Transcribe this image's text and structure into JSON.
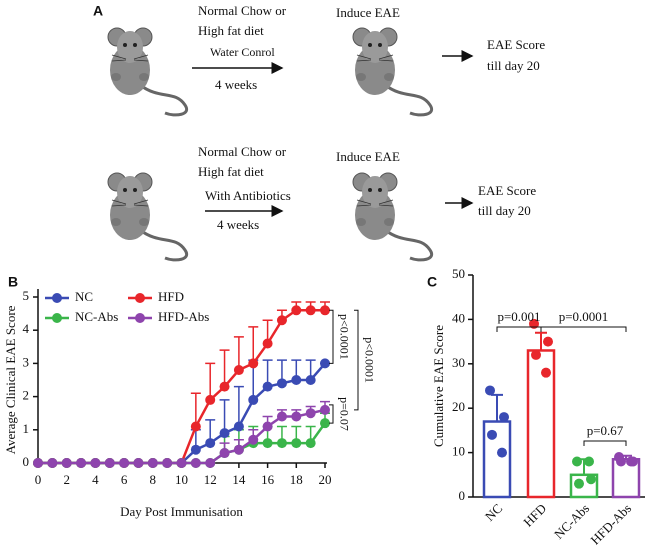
{
  "diagram": {
    "panel": "A",
    "rows": [
      {
        "diet": [
          "Normal Chow or",
          "High fat diet"
        ],
        "treatment": "Water Conrol",
        "duration": "4 weeks",
        "induce": "Induce EAE",
        "outcome": [
          "EAE Score",
          "till day 20"
        ]
      },
      {
        "diet": [
          "Normal Chow or",
          "High fat diet"
        ],
        "treatment": "With Antibiotics",
        "duration": "4 weeks",
        "induce": "Induce EAE",
        "outcome": [
          "EAE Score",
          "till day 20"
        ]
      }
    ]
  },
  "chart_data": [
    {
      "type": "line",
      "panel": "B",
      "xlabel": "Day Post Immunisation",
      "ylabel": "Average Clinical EAE Score",
      "x": [
        0,
        1,
        2,
        3,
        4,
        5,
        6,
        7,
        8,
        9,
        10,
        11,
        12,
        13,
        14,
        15,
        16,
        17,
        18,
        19,
        20
      ],
      "xlim": [
        0,
        20
      ],
      "xticks": [
        0,
        2,
        4,
        6,
        8,
        10,
        12,
        14,
        16,
        18,
        20
      ],
      "ylim": [
        0,
        5
      ],
      "yticks": [
        0,
        1,
        2,
        3,
        4,
        5
      ],
      "series": [
        {
          "name": "NC",
          "color": "#3a4bb4",
          "values": [
            0,
            0,
            0,
            0,
            0,
            0,
            0,
            0,
            0,
            0,
            0,
            0.4,
            0.6,
            0.9,
            1.1,
            1.9,
            2.3,
            2.4,
            2.5,
            2.5,
            3.0
          ],
          "errors": [
            0,
            0,
            0,
            0,
            0,
            0,
            0,
            0,
            0,
            0,
            0,
            0.6,
            0.7,
            1.0,
            1.2,
            1.2,
            0.8,
            0.7,
            0.6,
            0.6,
            0
          ]
        },
        {
          "name": "HFD",
          "color": "#e8262b",
          "values": [
            0,
            0,
            0,
            0,
            0,
            0,
            0,
            0,
            0,
            0,
            0,
            1.1,
            1.9,
            2.3,
            2.8,
            3.0,
            3.6,
            4.3,
            4.6,
            4.6,
            4.6
          ],
          "errors": [
            0,
            0,
            0,
            0,
            0,
            0,
            0,
            0,
            0,
            0,
            0,
            1.0,
            1.1,
            1.1,
            1.0,
            1.1,
            0.7,
            0.3,
            0.25,
            0.25,
            0.25
          ]
        },
        {
          "name": "NC-Abs",
          "color": "#3ab54a",
          "values": [
            0,
            0,
            0,
            0,
            0,
            0,
            0,
            0,
            0,
            0,
            0,
            0,
            0,
            0.3,
            0.4,
            0.6,
            0.6,
            0.6,
            0.6,
            0.6,
            1.2
          ],
          "errors": [
            0,
            0,
            0,
            0,
            0,
            0,
            0,
            0,
            0,
            0,
            0,
            0,
            0,
            0.5,
            0.6,
            0.5,
            0.5,
            0.5,
            0.5,
            0.5,
            0.3
          ]
        },
        {
          "name": "HFD-Abs",
          "color": "#8e44ad",
          "values": [
            0,
            0,
            0,
            0,
            0,
            0,
            0,
            0,
            0,
            0,
            0,
            0,
            0,
            0.3,
            0.4,
            0.7,
            1.1,
            1.4,
            1.4,
            1.5,
            1.6
          ],
          "errors": [
            0,
            0,
            0,
            0,
            0,
            0,
            0,
            0,
            0,
            0,
            0,
            0,
            0,
            0.3,
            0.3,
            0.3,
            0.3,
            0.2,
            0.2,
            0.2,
            0.25
          ]
        }
      ],
      "annotations": [
        "p<0.0001",
        "p<0.0001",
        "p=0.07"
      ]
    },
    {
      "type": "bar",
      "panel": "C",
      "ylabel": "Cumulative EAE Score",
      "categories": [
        "NC",
        "HFD",
        "NC-Abs",
        "HFD-Abs"
      ],
      "values": [
        17,
        33,
        5,
        8.5
      ],
      "errors": [
        6,
        4,
        3.5,
        0.8
      ],
      "points": [
        [
          24,
          18,
          14,
          10
        ],
        [
          39,
          35,
          32,
          28
        ],
        [
          8,
          4,
          3,
          8
        ],
        [
          9,
          8,
          8,
          8
        ]
      ],
      "colors": [
        "#3a4bb4",
        "#e8262b",
        "#3ab54a",
        "#8e44ad"
      ],
      "ylim": [
        0,
        50
      ],
      "yticks": [
        0,
        10,
        20,
        30,
        40,
        50
      ],
      "annotations": [
        "p=0.001",
        "p=0.0001",
        "p=0.67"
      ]
    }
  ]
}
